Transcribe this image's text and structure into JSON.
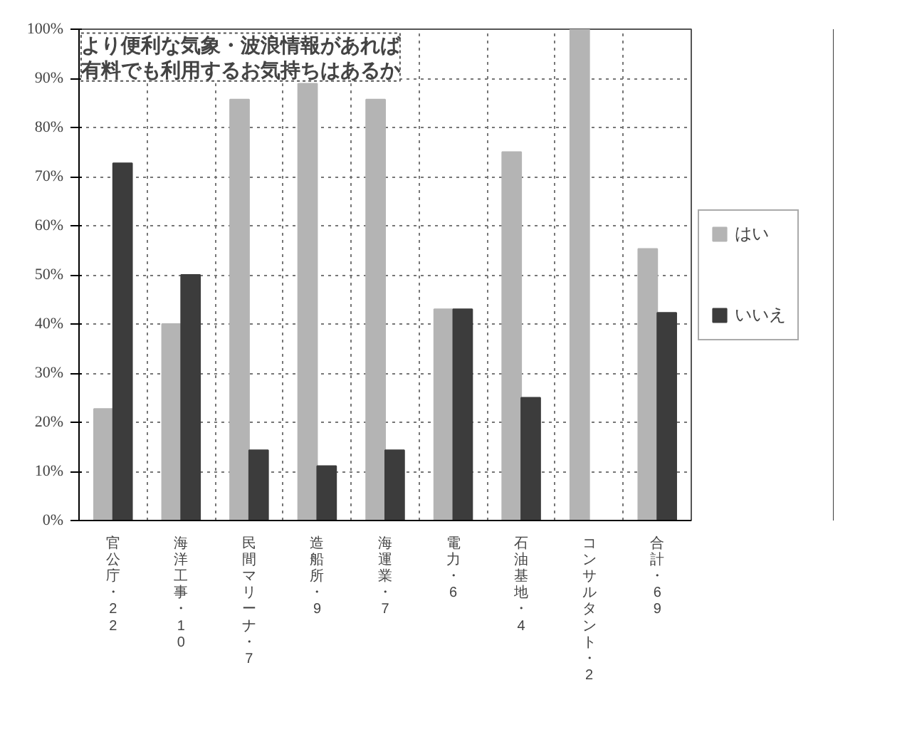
{
  "chart_data": {
    "type": "bar",
    "title": "より便利な気象・波浪情報があれば有料でも利用するお気持ちはあるか",
    "categories": [
      "官公庁・22",
      "海洋工事・10",
      "民間マリーナ・7",
      "造船所・9",
      "海運業・7",
      "電力・6",
      "石油基地・4",
      "コンサルタント・2",
      "合計・69"
    ],
    "series": [
      {
        "name": "はい",
        "color": "#b4b4b4",
        "values": [
          22.7,
          40,
          85.7,
          88.9,
          85.7,
          43,
          75,
          100,
          55.3
        ]
      },
      {
        "name": "いいえ",
        "color": "#3c3c3c",
        "values": [
          72.7,
          50,
          14.3,
          11.1,
          14.3,
          43,
          25,
          0,
          42.3
        ]
      }
    ],
    "ylim": [
      0,
      100
    ],
    "yticks": [
      {
        "value": 0,
        "label": "0%"
      },
      {
        "value": 10,
        "label": "10%"
      },
      {
        "value": 20,
        "label": "20%"
      },
      {
        "value": 30,
        "label": "30%"
      },
      {
        "value": 40,
        "label": "40%"
      },
      {
        "value": 50,
        "label": "50%"
      },
      {
        "value": 60,
        "label": "60%"
      },
      {
        "value": 70,
        "label": "70%"
      },
      {
        "value": 80,
        "label": "80%"
      },
      {
        "value": 90,
        "label": "90%"
      },
      {
        "value": 100,
        "label": "100%"
      }
    ],
    "grid": true,
    "legend": "right"
  }
}
